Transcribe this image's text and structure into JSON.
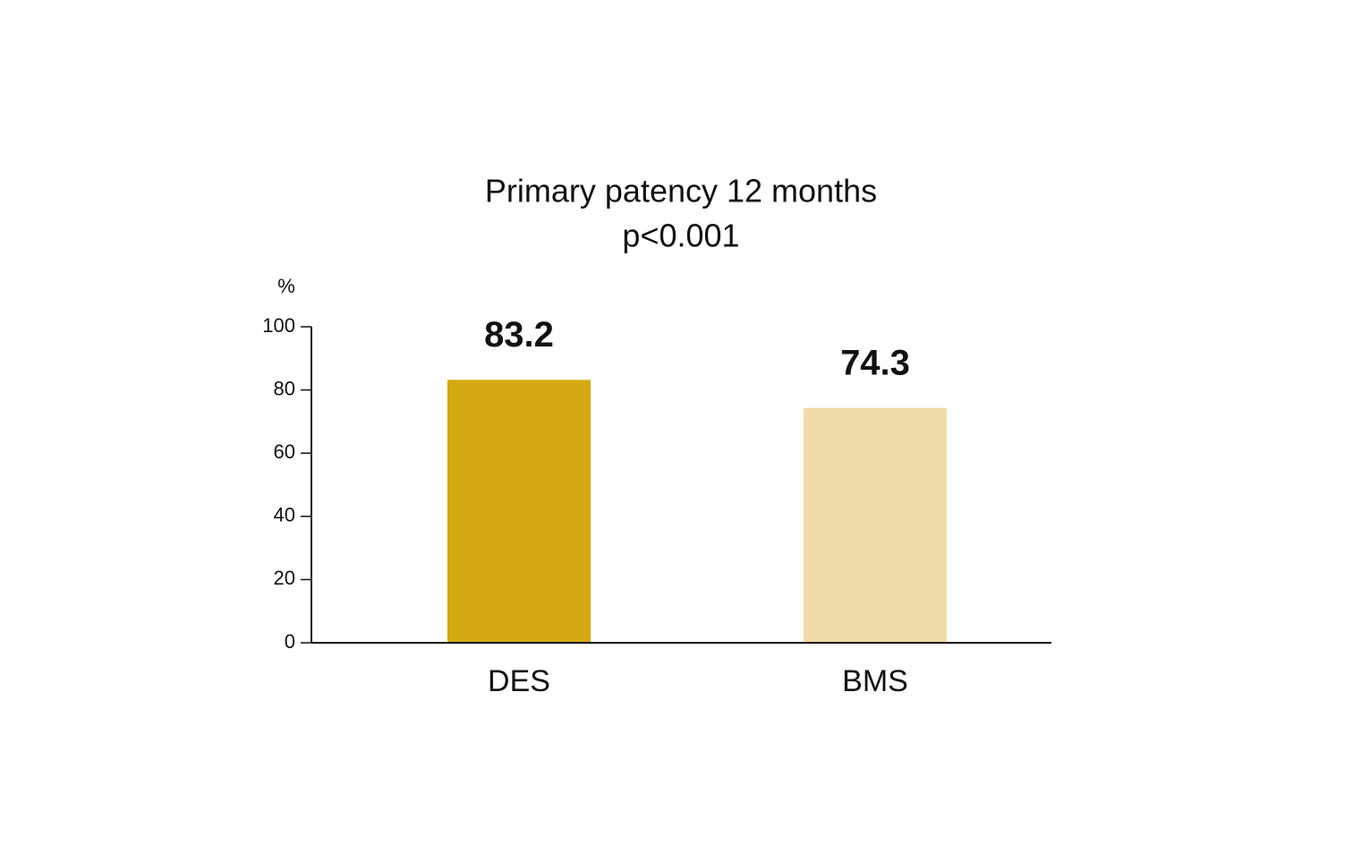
{
  "chart_data": {
    "type": "bar",
    "title": "Primary patency 12 months",
    "subtitle": "p<0.001",
    "y_label": "%",
    "categories": [
      "DES",
      "BMS"
    ],
    "values": [
      83.2,
      74.3
    ],
    "colors": [
      "#d4aa10",
      "#f0dca8"
    ],
    "ylim": [
      0,
      100
    ],
    "yticks": [
      0,
      20,
      40,
      60,
      80,
      100
    ],
    "grid": false
  }
}
